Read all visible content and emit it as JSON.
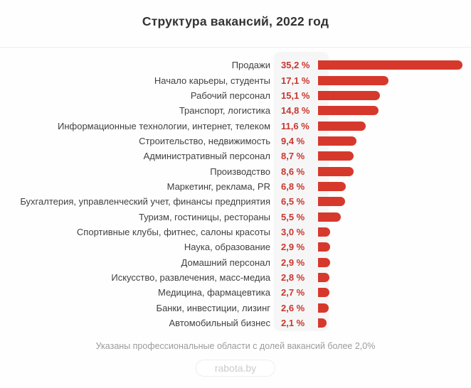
{
  "title": "Структура вакансий, 2022 год",
  "footnote": "Указаны профессиональные области с долей вакансий более 2,0%",
  "logo_label": "rabota.by",
  "colors": {
    "bar": "#d6392c",
    "value_text": "#c9362e",
    "label_text": "#414141",
    "band_background": "#f6f6f7"
  },
  "chart_data": {
    "type": "bar",
    "orientation": "horizontal",
    "title": "Структура вакансий, 2022 год",
    "categories": [
      "Продажи",
      "Начало карьеры, студенты",
      "Рабочий персонал",
      "Транспорт, логистика",
      "Информационные технологии, интернет, телеком",
      "Строительство, недвижимость",
      "Административный персонал",
      "Производство",
      "Маркетинг, реклама, PR",
      "Бухгалтерия, управленческий учет, финансы предприятия",
      "Туризм, гостиницы, рестораны",
      "Спортивные клубы, фитнес, салоны красоты",
      "Наука, образование",
      "Домашний персонал",
      "Искусство, развлечения, масс-медиа",
      "Медицина, фармацевтика",
      "Банки, инвестиции, лизинг",
      "Автомобильный бизнес"
    ],
    "values": [
      35.2,
      17.1,
      15.1,
      14.8,
      11.6,
      9.4,
      8.7,
      8.6,
      6.8,
      6.5,
      5.5,
      3.0,
      2.9,
      2.9,
      2.8,
      2.7,
      2.6,
      2.1
    ],
    "value_labels": [
      "35,2 %",
      "17,1 %",
      "15,1 %",
      "14,8 %",
      "11,6 %",
      "9,4 %",
      "8,7 %",
      "8,6 %",
      "6,8 %",
      "6,5 %",
      "5,5 %",
      "3,0 %",
      "2,9 %",
      "2,9 %",
      "2,8 %",
      "2,7 %",
      "2,6 %",
      "2,1 %"
    ],
    "xlim": [
      0,
      36.6
    ],
    "grid": false,
    "legend": false,
    "value_label_position": "left-of-bar",
    "footnote": "Указаны профессиональные области с долей вакансий более 2,0%",
    "source": "rabota.by"
  }
}
